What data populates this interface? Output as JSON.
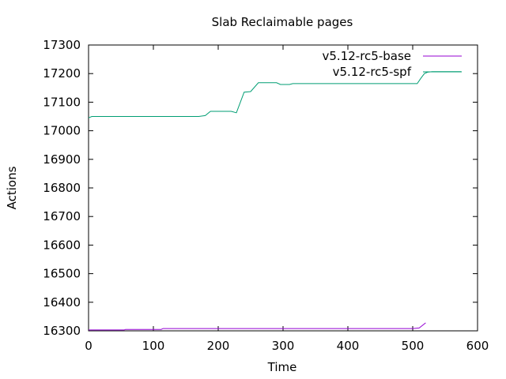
{
  "chart_data": {
    "type": "line",
    "title": "Slab Reclaimable pages",
    "xlabel": "Time",
    "ylabel": "Actions",
    "xlim": [
      0,
      600
    ],
    "ylim": [
      16300,
      17300
    ],
    "xticks": [
      "0",
      "100",
      "200",
      "300",
      "400",
      "500",
      "600"
    ],
    "yticks": [
      "16300",
      "16400",
      "16500",
      "16600",
      "16700",
      "16800",
      "16900",
      "17000",
      "17100",
      "17200",
      "17300"
    ],
    "grid": false,
    "legend_position": "top-right",
    "series": [
      {
        "name": "v5.12-rc5-base",
        "color": "#9400d3",
        "points": [
          [
            0,
            16303
          ],
          [
            55,
            16303
          ],
          [
            57,
            16305
          ],
          [
            112,
            16305
          ],
          [
            115,
            16308
          ],
          [
            500,
            16308
          ],
          [
            510,
            16310
          ],
          [
            520,
            16328
          ]
        ]
      },
      {
        "name": "v5.12-rc5-spf",
        "color": "#009e73",
        "points": [
          [
            0,
            17045
          ],
          [
            5,
            17050
          ],
          [
            170,
            17050
          ],
          [
            180,
            17053
          ],
          [
            188,
            17068
          ],
          [
            220,
            17068
          ],
          [
            228,
            17063
          ],
          [
            240,
            17135
          ],
          [
            250,
            17137
          ],
          [
            262,
            17168
          ],
          [
            290,
            17168
          ],
          [
            296,
            17162
          ],
          [
            310,
            17162
          ],
          [
            315,
            17165
          ],
          [
            500,
            17165
          ],
          [
            507,
            17165
          ],
          [
            513,
            17185
          ],
          [
            518,
            17200
          ],
          [
            523,
            17205
          ],
          [
            530,
            17207
          ],
          [
            575,
            17207
          ]
        ]
      }
    ]
  }
}
